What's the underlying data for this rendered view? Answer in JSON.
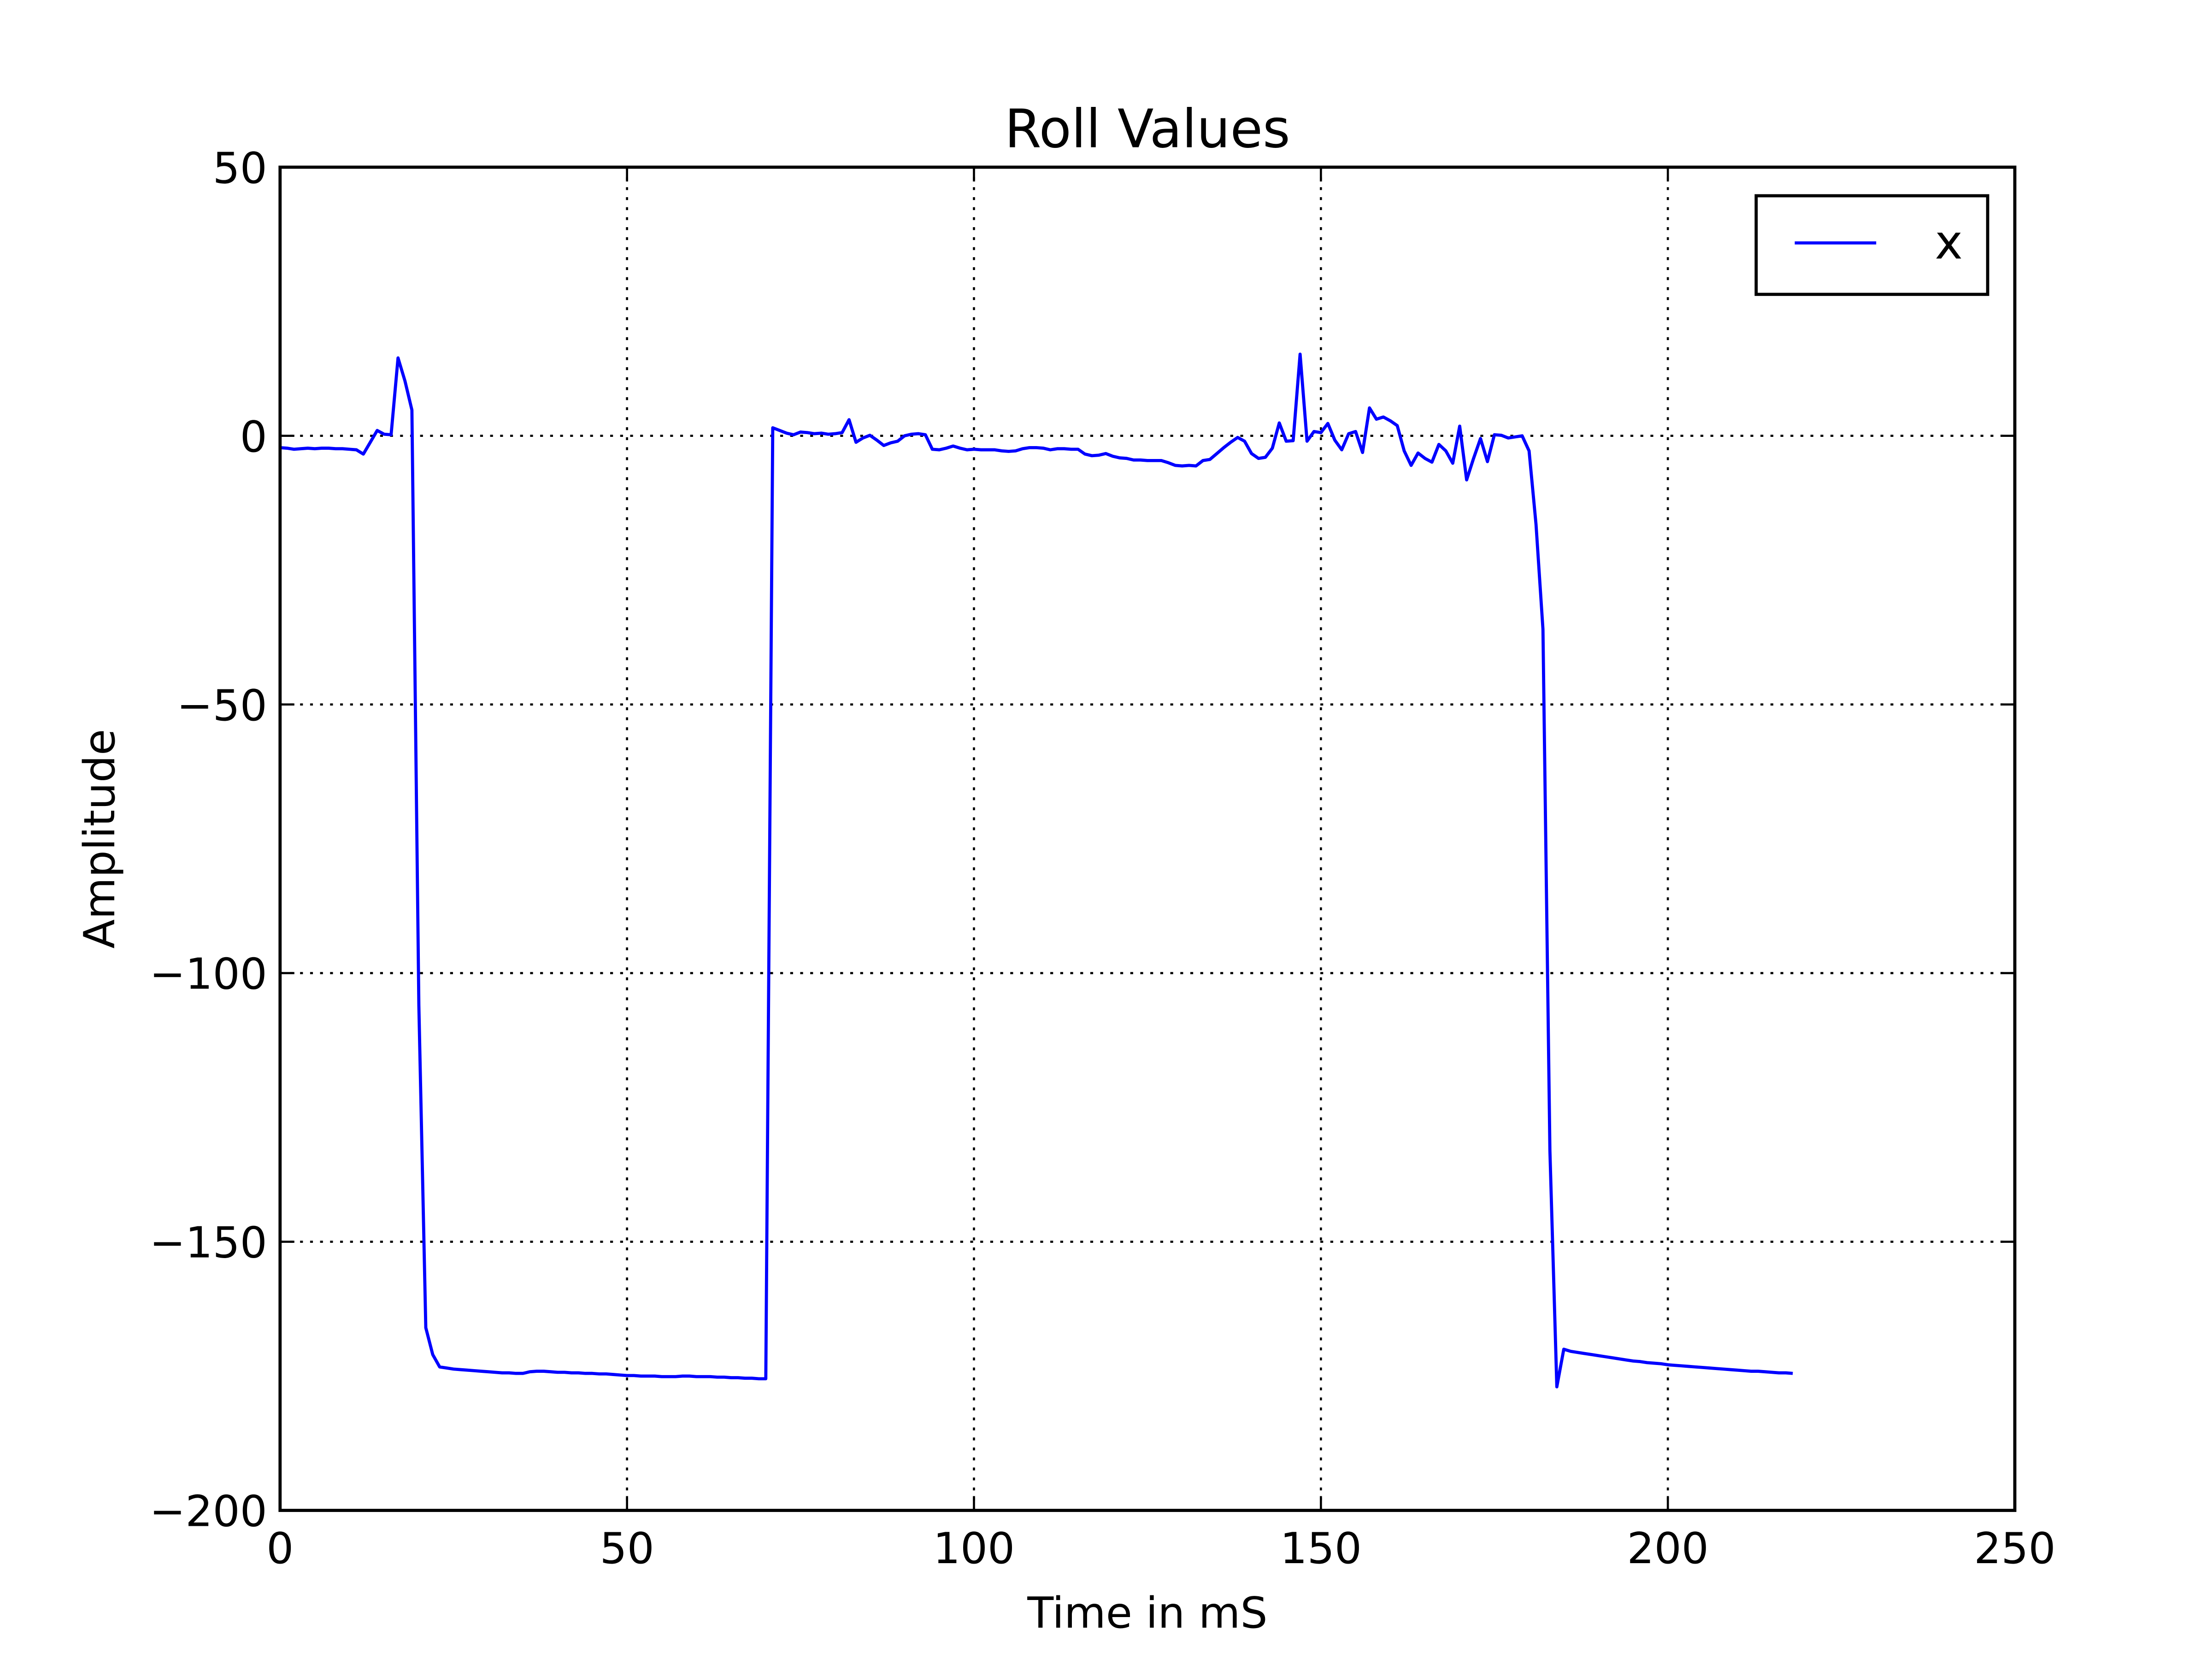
{
  "chart_data": {
    "type": "line",
    "title": "Roll Values",
    "x_label": "Time in mS",
    "y_label": "Amplitude",
    "xlim": [
      0,
      250
    ],
    "ylim": [
      -200,
      50
    ],
    "xticks": [
      0,
      50,
      100,
      150,
      200,
      250
    ],
    "yticks": [
      {
        "value": -200,
        "label": "−200"
      },
      {
        "value": -150,
        "label": "−150"
      },
      {
        "value": -100,
        "label": "−100"
      },
      {
        "value": -50,
        "label": "−50"
      },
      0,
      50
    ],
    "grid": true,
    "legend": "upper right",
    "x": [
      0,
      1,
      2,
      3,
      4,
      5,
      6,
      7,
      8,
      9,
      10,
      11,
      12,
      13,
      14,
      15,
      16,
      17,
      18,
      19,
      20,
      21,
      22,
      23,
      24,
      25,
      26,
      27,
      28,
      29,
      30,
      31,
      32,
      33,
      34,
      35,
      36,
      37,
      38,
      39,
      40,
      41,
      42,
      43,
      44,
      45,
      46,
      47,
      48,
      49,
      50,
      51,
      52,
      53,
      54,
      55,
      56,
      57,
      58,
      59,
      60,
      61,
      62,
      63,
      64,
      65,
      66,
      67,
      68,
      69,
      70,
      71,
      72,
      73,
      74,
      75,
      76,
      77,
      78,
      79,
      80,
      81,
      82,
      83,
      84,
      85,
      86,
      87,
      88,
      89,
      90,
      91,
      92,
      93,
      94,
      95,
      96,
      97,
      98,
      99,
      100,
      101,
      102,
      103,
      104,
      105,
      106,
      107,
      108,
      109,
      110,
      111,
      112,
      113,
      114,
      115,
      116,
      117,
      118,
      119,
      120,
      121,
      122,
      123,
      124,
      125,
      126,
      127,
      128,
      129,
      130,
      131,
      132,
      133,
      134,
      135,
      136,
      137,
      138,
      139,
      140,
      141,
      142,
      143,
      144,
      145,
      146,
      147,
      148,
      149,
      150,
      151,
      152,
      153,
      154,
      155,
      156,
      157,
      158,
      159,
      160,
      161,
      162,
      163,
      164,
      165,
      166,
      167,
      168,
      169,
      170,
      171,
      172,
      173,
      174,
      175,
      176,
      177,
      178,
      179,
      180,
      181,
      182,
      183,
      184,
      185,
      186,
      187,
      188,
      189,
      190,
      191,
      192,
      193,
      194,
      195,
      196,
      197,
      198,
      199,
      200,
      201,
      202,
      203,
      204,
      205,
      206,
      207,
      208,
      209,
      210,
      211,
      212,
      213,
      214,
      215,
      216,
      217,
      218
    ],
    "series": [
      {
        "name": "x",
        "color": "#0000ff",
        "values": [
          -2.2,
          -2.3,
          -2.5,
          -2.4,
          -2.3,
          -2.4,
          -2.3,
          -2.3,
          -2.4,
          -2.4,
          -2.5,
          -2.6,
          -3.4,
          -1.2,
          1.0,
          0.3,
          0.2,
          14.5,
          10.2,
          4.8,
          -106,
          -166,
          -171,
          -173.3,
          -173.5,
          -173.7,
          -173.8,
          -173.9,
          -174,
          -174.1,
          -174.2,
          -174.3,
          -174.4,
          -174.4,
          -174.5,
          -174.5,
          -174.2,
          -174.1,
          -174.1,
          -174.2,
          -174.3,
          -174.3,
          -174.4,
          -174.4,
          -174.5,
          -174.5,
          -174.6,
          -174.6,
          -174.7,
          -174.8,
          -174.9,
          -174.9,
          -175,
          -175,
          -175,
          -175.1,
          -175.1,
          -175.1,
          -175,
          -175,
          -175.1,
          -175.1,
          -175.1,
          -175.2,
          -175.2,
          -175.3,
          -175.3,
          -175.4,
          -175.4,
          -175.5,
          -175.5,
          1.5,
          1.0,
          0.5,
          0.2,
          0.7,
          0.6,
          0.4,
          0.5,
          0.3,
          0.4,
          0.6,
          3.0,
          -1.2,
          -0.4,
          0.1,
          -0.8,
          -1.8,
          -1.3,
          -1.0,
          0,
          0.3,
          0.4,
          0.2,
          -2.5,
          -2.6,
          -2.3,
          -1.9,
          -2.3,
          -2.6,
          -2.5,
          -2.6,
          -2.6,
          -2.6,
          -2.8,
          -2.9,
          -2.8,
          -2.4,
          -2.2,
          -2.2,
          -2.3,
          -2.6,
          -2.4,
          -2.4,
          -2.5,
          -2.5,
          -3.4,
          -3.7,
          -3.6,
          -3.3,
          -3.8,
          -4.1,
          -4.2,
          -4.5,
          -4.5,
          -4.6,
          -4.6,
          -4.6,
          -5.0,
          -5.5,
          -5.6,
          -5.5,
          -5.6,
          -4.6,
          -4.4,
          -3.3,
          -2.2,
          -1.2,
          -0.3,
          -1.0,
          -3.3,
          -4.2,
          -4.0,
          -2.3,
          2.4,
          -1.0,
          -0.9,
          15.2,
          -1.0,
          0.8,
          0.6,
          2.3,
          -0.8,
          -2.6,
          0.4,
          0.8,
          -3.1,
          5.2,
          3.1,
          3.5,
          2.8,
          1.9,
          -2.8,
          -5.5,
          -3.2,
          -4.2,
          -4.9,
          -1.6,
          -2.8,
          -5.1,
          1.8,
          -8.2,
          -4.2,
          -0.5,
          -4.8,
          0.2,
          0.1,
          -0.4,
          -0.2,
          0,
          -2.8,
          -16.5,
          -36,
          -133,
          -177,
          -170,
          -170.4,
          -170.6,
          -170.8,
          -171.0,
          -171.2,
          -171.4,
          -171.6,
          -171.8,
          -172.0,
          -172.2,
          -172.3,
          -172.5,
          -172.6,
          -172.7,
          -172.9,
          -173.0,
          -173.1,
          -173.2,
          -173.3,
          -173.4,
          -173.5,
          -173.6,
          -173.7,
          -173.8,
          -173.9,
          -174.0,
          -174.1,
          -174.1,
          -174.2,
          -174.3,
          -174.4,
          -174.4,
          -174.5
        ]
      }
    ]
  }
}
